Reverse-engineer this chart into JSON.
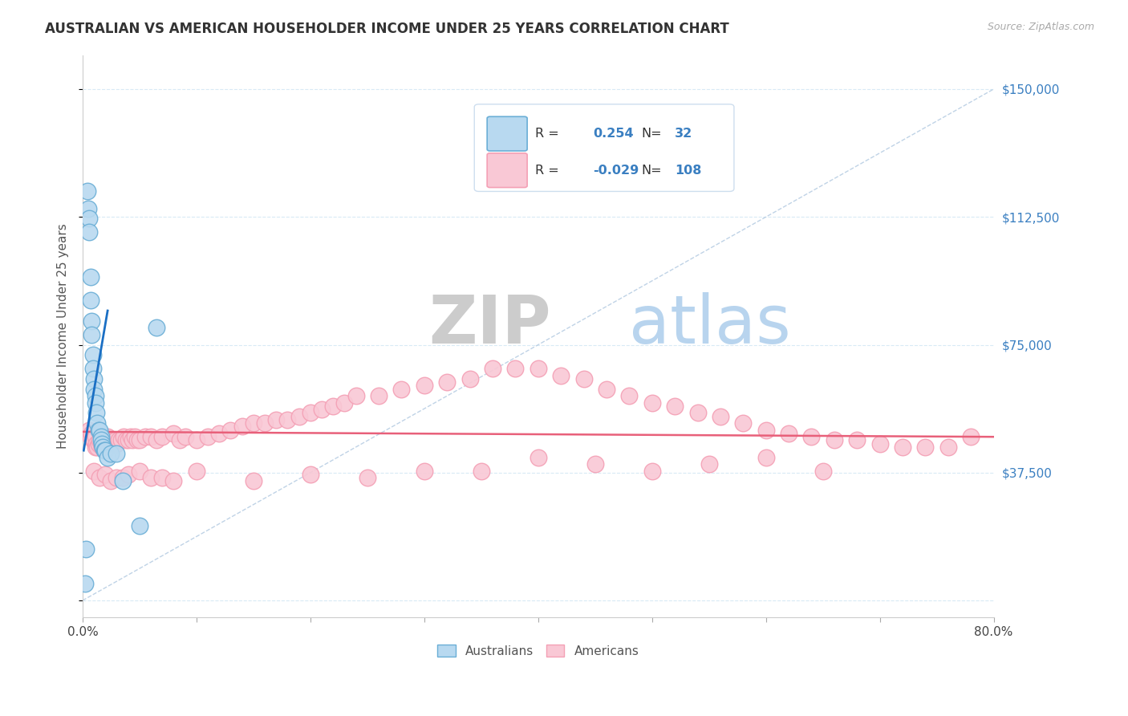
{
  "title": "AUSTRALIAN VS AMERICAN HOUSEHOLDER INCOME UNDER 25 YEARS CORRELATION CHART",
  "source": "Source: ZipAtlas.com",
  "ylabel": "Householder Income Under 25 years",
  "xlim": [
    0.0,
    0.8
  ],
  "ylim": [
    -5000,
    160000
  ],
  "yticks": [
    0,
    37500,
    75000,
    112500,
    150000
  ],
  "xticks": [
    0.0,
    0.1,
    0.2,
    0.3,
    0.4,
    0.5,
    0.6,
    0.7,
    0.8
  ],
  "ytick_labels": [
    "",
    "$37,500",
    "$75,000",
    "$112,500",
    "$150,000"
  ],
  "legend_au_r": "0.254",
  "legend_au_n": "32",
  "legend_am_r": "-0.029",
  "legend_am_n": "108",
  "au_face_color": "#b8d9f0",
  "au_edge_color": "#6aaed6",
  "am_face_color": "#f9c8d5",
  "am_edge_color": "#f4a0b5",
  "trend_au_color": "#1a6fc4",
  "trend_am_color": "#e8607a",
  "diag_color": "#b0c8e0",
  "grid_color": "#d8eaf5",
  "background_color": "#ffffff",
  "legend_text_color": "#3a7fc1",
  "au_x": [
    0.002,
    0.003,
    0.004,
    0.005,
    0.006,
    0.006,
    0.007,
    0.007,
    0.008,
    0.008,
    0.009,
    0.009,
    0.01,
    0.01,
    0.011,
    0.011,
    0.012,
    0.013,
    0.014,
    0.015,
    0.016,
    0.016,
    0.017,
    0.018,
    0.019,
    0.02,
    0.022,
    0.025,
    0.03,
    0.035,
    0.05,
    0.065
  ],
  "au_y": [
    5000,
    15000,
    120000,
    115000,
    112000,
    108000,
    95000,
    88000,
    82000,
    78000,
    72000,
    68000,
    65000,
    62000,
    60000,
    58000,
    55000,
    52000,
    50000,
    50000,
    48000,
    47000,
    46000,
    45000,
    44000,
    44000,
    42000,
    43000,
    43000,
    35000,
    22000,
    80000
  ],
  "am_x": [
    0.006,
    0.007,
    0.008,
    0.009,
    0.01,
    0.011,
    0.011,
    0.012,
    0.013,
    0.014,
    0.015,
    0.016,
    0.017,
    0.018,
    0.019,
    0.02,
    0.021,
    0.022,
    0.023,
    0.024,
    0.025,
    0.026,
    0.027,
    0.028,
    0.029,
    0.03,
    0.032,
    0.034,
    0.036,
    0.038,
    0.04,
    0.042,
    0.044,
    0.046,
    0.048,
    0.05,
    0.055,
    0.06,
    0.065,
    0.07,
    0.08,
    0.085,
    0.09,
    0.1,
    0.11,
    0.12,
    0.13,
    0.14,
    0.15,
    0.16,
    0.17,
    0.18,
    0.19,
    0.2,
    0.21,
    0.22,
    0.23,
    0.24,
    0.26,
    0.28,
    0.3,
    0.32,
    0.34,
    0.36,
    0.38,
    0.4,
    0.42,
    0.44,
    0.46,
    0.48,
    0.5,
    0.52,
    0.54,
    0.56,
    0.58,
    0.6,
    0.62,
    0.64,
    0.66,
    0.68,
    0.7,
    0.72,
    0.74,
    0.76,
    0.78,
    0.01,
    0.015,
    0.02,
    0.025,
    0.03,
    0.035,
    0.04,
    0.05,
    0.06,
    0.07,
    0.08,
    0.1,
    0.15,
    0.2,
    0.25,
    0.3,
    0.35,
    0.4,
    0.45,
    0.5,
    0.55,
    0.6,
    0.65
  ],
  "am_y": [
    50000,
    48000,
    49000,
    47000,
    47000,
    48000,
    45000,
    46000,
    45000,
    46000,
    47000,
    46000,
    45000,
    46000,
    47000,
    46000,
    47000,
    48000,
    47000,
    46000,
    47000,
    46000,
    47000,
    46000,
    47000,
    46000,
    47000,
    47000,
    48000,
    47000,
    47000,
    48000,
    47000,
    48000,
    47000,
    47000,
    48000,
    48000,
    47000,
    48000,
    49000,
    47000,
    48000,
    47000,
    48000,
    49000,
    50000,
    51000,
    52000,
    52000,
    53000,
    53000,
    54000,
    55000,
    56000,
    57000,
    58000,
    60000,
    60000,
    62000,
    63000,
    64000,
    65000,
    68000,
    68000,
    68000,
    66000,
    65000,
    62000,
    60000,
    58000,
    57000,
    55000,
    54000,
    52000,
    50000,
    49000,
    48000,
    47000,
    47000,
    46000,
    45000,
    45000,
    45000,
    48000,
    38000,
    36000,
    37000,
    35000,
    36000,
    36000,
    37000,
    38000,
    36000,
    36000,
    35000,
    38000,
    35000,
    37000,
    36000,
    38000,
    38000,
    42000,
    40000,
    38000,
    40000,
    42000,
    38000
  ]
}
